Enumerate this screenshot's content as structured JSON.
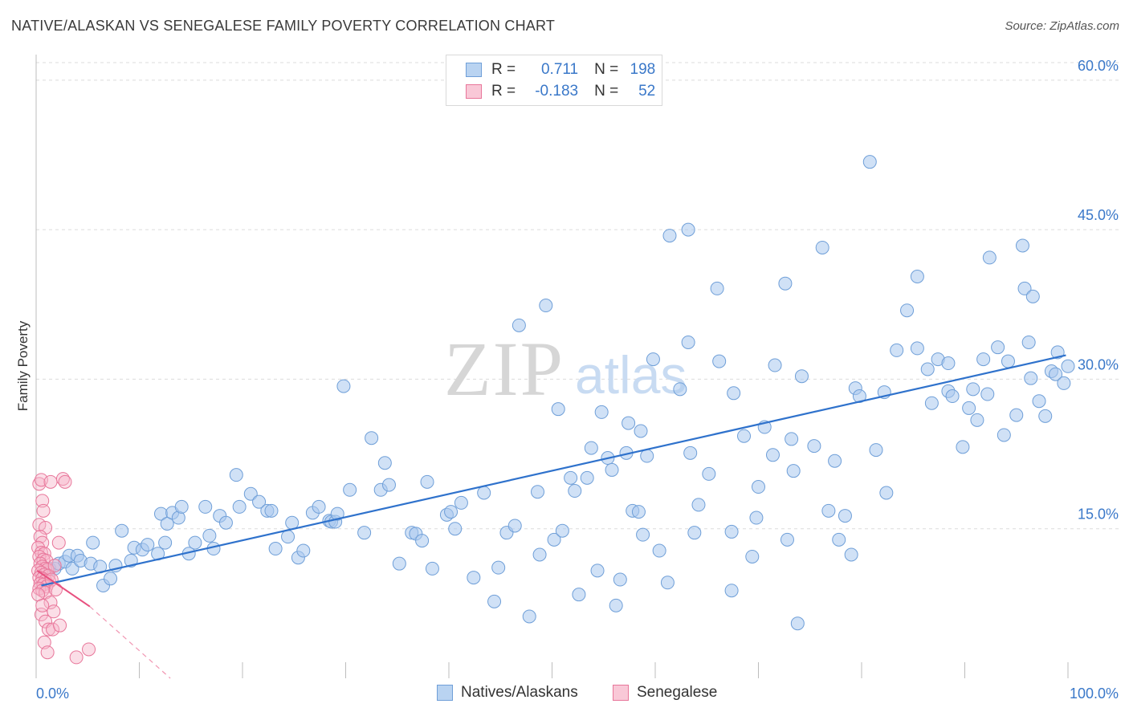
{
  "title": "NATIVE/ALASKAN VS SENEGALESE FAMILY POVERTY CORRELATION CHART",
  "source": "Source: ZipAtlas.com",
  "watermark": {
    "zip": "ZIP",
    "atlas": "atlas"
  },
  "colors": {
    "blue_fill": "#a9c8ee",
    "blue_stroke": "#6f9fd8",
    "blue_line": "#2f72cc",
    "pink_fill": "#f6b6c9",
    "pink_stroke": "#e8769a",
    "pink_line": "#e8507f",
    "axis_text": "#3a78c9",
    "grid": "#dcdcdc"
  },
  "legend": {
    "rows": [
      {
        "r_label": "R =",
        "r_value": "0.711",
        "n_label": "N =",
        "n_value": "198"
      },
      {
        "r_label": "R =",
        "r_value": "-0.183",
        "n_label": "N =",
        "n_value": "52"
      }
    ]
  },
  "bottom_legend": [
    "Natives/Alaskans",
    "Senegalese"
  ],
  "chart_data": {
    "type": "scatter",
    "title": "NATIVE/ALASKAN VS SENEGALESE FAMILY POVERTY CORRELATION CHART",
    "xlabel": "",
    "ylabel": "Family Poverty",
    "xlim": [
      0,
      100
    ],
    "ylim": [
      0,
      62
    ],
    "x_tick_labels": [
      "0.0%",
      "100.0%"
    ],
    "y_ticks": [
      15,
      30,
      45,
      60
    ],
    "y_tick_labels": [
      "15.0%",
      "30.0%",
      "45.0%",
      "60.0%"
    ],
    "legend_position": "top-center",
    "series": [
      {
        "name": "Natives/Alaskans",
        "r": 0.711,
        "n": 198,
        "trend": {
          "x0": 0.5,
          "y0": 9.3,
          "x1": 99.8,
          "y1": 32.4
        },
        "points": [
          [
            1.3,
            11
          ],
          [
            1.8,
            11
          ],
          [
            2.2,
            11.5
          ],
          [
            2.8,
            11.7
          ],
          [
            3.2,
            12.3
          ],
          [
            3.5,
            11
          ],
          [
            4,
            12.3
          ],
          [
            4.3,
            11.8
          ],
          [
            5.3,
            11.5
          ],
          [
            5.5,
            13.6
          ],
          [
            6.2,
            11.2
          ],
          [
            6.5,
            9.3
          ],
          [
            7.2,
            10
          ],
          [
            7.7,
            11.3
          ],
          [
            8.3,
            14.8
          ],
          [
            9.2,
            11.8
          ],
          [
            9.5,
            13.1
          ],
          [
            10.3,
            12.9
          ],
          [
            10.8,
            13.4
          ],
          [
            11.8,
            12.5
          ],
          [
            12.1,
            16.5
          ],
          [
            12.5,
            13.6
          ],
          [
            12.7,
            15.5
          ],
          [
            13.2,
            16.6
          ],
          [
            13.8,
            16.1
          ],
          [
            14.1,
            17.2
          ],
          [
            14.8,
            12.5
          ],
          [
            15.4,
            13.6
          ],
          [
            16.4,
            17.2
          ],
          [
            16.8,
            14.3
          ],
          [
            17.2,
            13
          ],
          [
            17.8,
            16.3
          ],
          [
            18.4,
            15.6
          ],
          [
            19.4,
            20.4
          ],
          [
            19.7,
            17.2
          ],
          [
            20.8,
            18.5
          ],
          [
            21.6,
            17.7
          ],
          [
            22.4,
            16.8
          ],
          [
            22.8,
            16.8
          ],
          [
            23.2,
            13
          ],
          [
            24.4,
            14.2
          ],
          [
            24.8,
            15.6
          ],
          [
            25.4,
            12.1
          ],
          [
            25.9,
            12.8
          ],
          [
            26.8,
            16.6
          ],
          [
            27.4,
            17.2
          ],
          [
            28.4,
            15.8
          ],
          [
            28.6,
            15.7
          ],
          [
            29,
            15.7
          ],
          [
            29.2,
            16.5
          ],
          [
            30.4,
            18.9
          ],
          [
            31.8,
            14.6
          ],
          [
            33.4,
            18.9
          ],
          [
            33.8,
            21.6
          ],
          [
            34.2,
            19.4
          ],
          [
            35.2,
            11.5
          ],
          [
            36.4,
            14.6
          ],
          [
            36.8,
            14.5
          ],
          [
            37.4,
            13.8
          ],
          [
            37.9,
            19.7
          ],
          [
            38.4,
            11
          ],
          [
            39.8,
            16.4
          ],
          [
            40.2,
            16.7
          ],
          [
            40.6,
            15
          ],
          [
            41.2,
            17.6
          ],
          [
            42.4,
            10.1
          ],
          [
            43.4,
            18.6
          ],
          [
            44.4,
            7.7
          ],
          [
            45.6,
            14.6
          ],
          [
            46.4,
            15.3
          ],
          [
            46.8,
            35.4
          ],
          [
            47.8,
            6.2
          ],
          [
            48.6,
            18.7
          ],
          [
            48.8,
            12.4
          ],
          [
            49.4,
            37.4
          ],
          [
            50.2,
            13.9
          ],
          [
            50.6,
            27
          ],
          [
            51,
            14.8
          ],
          [
            51.8,
            20.1
          ],
          [
            52.2,
            18.8
          ],
          [
            52.6,
            8.4
          ],
          [
            53.4,
            20.1
          ],
          [
            53.8,
            23.1
          ],
          [
            54.4,
            10.8
          ],
          [
            54.8,
            26.7
          ],
          [
            55.4,
            22.1
          ],
          [
            55.8,
            20.9
          ],
          [
            56.6,
            9.9
          ],
          [
            57.2,
            22.6
          ],
          [
            57.4,
            25.6
          ],
          [
            57.8,
            16.8
          ],
          [
            58.4,
            16.7
          ],
          [
            58.6,
            24.8
          ],
          [
            58.8,
            14.4
          ],
          [
            59.8,
            32
          ],
          [
            60.4,
            12.8
          ],
          [
            61.2,
            9.6
          ],
          [
            61.4,
            44.4
          ],
          [
            62.4,
            29
          ],
          [
            63.2,
            45
          ],
          [
            63.2,
            33.7
          ],
          [
            63.4,
            22.6
          ],
          [
            63.8,
            14.6
          ],
          [
            64.2,
            17.4
          ],
          [
            65.2,
            20.5
          ],
          [
            66,
            39.1
          ],
          [
            66.2,
            31.8
          ],
          [
            67.4,
            14.7
          ],
          [
            67.4,
            8.8
          ],
          [
            67.6,
            28.6
          ],
          [
            68.6,
            24.3
          ],
          [
            69.4,
            12.2
          ],
          [
            69.8,
            16.1
          ],
          [
            70,
            19.2
          ],
          [
            70.6,
            25.2
          ],
          [
            71.4,
            22.4
          ],
          [
            71.6,
            31.4
          ],
          [
            72.8,
            13.9
          ],
          [
            73.2,
            24
          ],
          [
            73.4,
            20.8
          ],
          [
            74.2,
            30.3
          ],
          [
            75.4,
            23.3
          ],
          [
            76.8,
            16.8
          ],
          [
            77.4,
            21.8
          ],
          [
            77.8,
            13.9
          ],
          [
            78.4,
            16.3
          ],
          [
            79,
            12.4
          ],
          [
            79.4,
            29.1
          ],
          [
            79.8,
            28.3
          ],
          [
            80.8,
            51.8
          ],
          [
            81.4,
            22.9
          ],
          [
            82.2,
            28.7
          ],
          [
            82.4,
            18.6
          ],
          [
            83.4,
            32.9
          ],
          [
            84.4,
            36.9
          ],
          [
            85.4,
            33.1
          ],
          [
            86.4,
            31
          ],
          [
            86.8,
            27.6
          ],
          [
            87.4,
            32
          ],
          [
            88.4,
            31.6
          ],
          [
            88.4,
            28.8
          ],
          [
            88.8,
            28.3
          ],
          [
            89.8,
            23.2
          ],
          [
            90.4,
            27.1
          ],
          [
            90.8,
            29
          ],
          [
            91.2,
            25.9
          ],
          [
            91.8,
            32
          ],
          [
            92.2,
            28.5
          ],
          [
            93.2,
            33.2
          ],
          [
            93.8,
            24.4
          ],
          [
            94.2,
            31.8
          ],
          [
            95,
            26.4
          ],
          [
            95.8,
            39.1
          ],
          [
            96.2,
            33.7
          ],
          [
            96.4,
            30.1
          ],
          [
            97.2,
            27.8
          ],
          [
            97.8,
            26.3
          ],
          [
            98.4,
            30.8
          ],
          [
            98.8,
            30.5
          ],
          [
            99,
            32.7
          ],
          [
            99.6,
            29.6
          ],
          [
            100,
            31.3
          ],
          [
            56.2,
            7.3
          ],
          [
            44.8,
            11.1
          ],
          [
            73.8,
            5.5
          ],
          [
            59.2,
            22.3
          ],
          [
            32.5,
            24.1
          ],
          [
            29.8,
            29.3
          ],
          [
            72.6,
            39.6
          ],
          [
            76.2,
            43.2
          ],
          [
            85.4,
            40.3
          ],
          [
            92.4,
            42.2
          ],
          [
            95.6,
            43.4
          ],
          [
            96.6,
            38.3
          ]
        ]
      },
      {
        "name": "Senegalese",
        "r": -0.183,
        "n": 52,
        "trend": {
          "x0": 0.1,
          "y0": 10.8,
          "x1": 5.2,
          "y1": 7.2
        },
        "trend_ext": {
          "x0": 5.2,
          "y0": 7.2,
          "x1": 13,
          "y1": 0
        },
        "points": [
          [
            0.3,
            19.5
          ],
          [
            0.5,
            19.9
          ],
          [
            0.6,
            17.8
          ],
          [
            0.7,
            16.8
          ],
          [
            0.3,
            15.4
          ],
          [
            0.9,
            15.1
          ],
          [
            0.4,
            14.2
          ],
          [
            0.6,
            13.6
          ],
          [
            0.2,
            13.1
          ],
          [
            0.5,
            12.6
          ],
          [
            0.8,
            12.5
          ],
          [
            0.3,
            12.2
          ],
          [
            0.7,
            11.9
          ],
          [
            1,
            11.8
          ],
          [
            0.4,
            11.5
          ],
          [
            0.6,
            11.2
          ],
          [
            0.9,
            11
          ],
          [
            1.1,
            10.9
          ],
          [
            0.2,
            10.8
          ],
          [
            0.5,
            10.6
          ],
          [
            0.8,
            10.4
          ],
          [
            1.2,
            10.3
          ],
          [
            0.3,
            10.1
          ],
          [
            0.6,
            10
          ],
          [
            0.9,
            9.8
          ],
          [
            1.3,
            9.7
          ],
          [
            0.4,
            9.5
          ],
          [
            0.7,
            9.4
          ],
          [
            1,
            9.2
          ],
          [
            0.3,
            9
          ],
          [
            0.6,
            8.8
          ],
          [
            0.9,
            8.6
          ],
          [
            1.5,
            9.9
          ],
          [
            1.8,
            11.3
          ],
          [
            2.2,
            13.6
          ],
          [
            2.6,
            20
          ],
          [
            2.8,
            19.7
          ],
          [
            1.4,
            7.6
          ],
          [
            1.7,
            6.7
          ],
          [
            0.5,
            6.4
          ],
          [
            0.9,
            5.7
          ],
          [
            1.2,
            4.9
          ],
          [
            1.6,
            4.9
          ],
          [
            2.3,
            5.3
          ],
          [
            0.8,
            3.6
          ],
          [
            1.1,
            2.6
          ],
          [
            3.9,
            2.1
          ],
          [
            5.1,
            2.9
          ],
          [
            1.4,
            19.7
          ],
          [
            0.2,
            8.4
          ],
          [
            0.6,
            7.3
          ],
          [
            1.9,
            8.9
          ]
        ]
      }
    ]
  }
}
